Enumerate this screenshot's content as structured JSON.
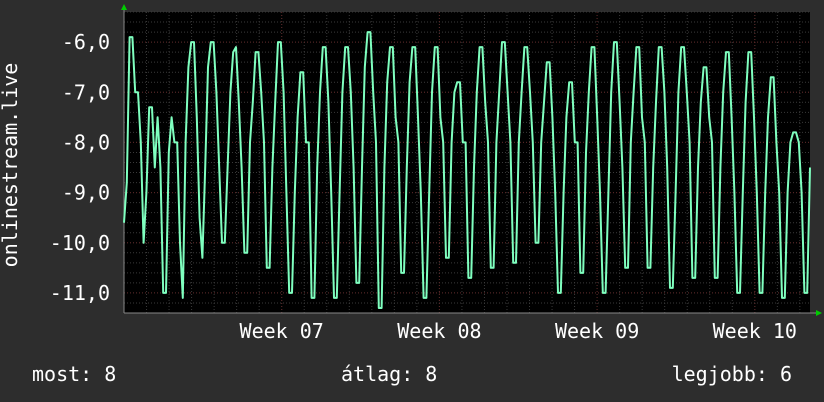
{
  "legend": {
    "now_label": "most:",
    "now_value": "8",
    "avg_label": "átlag:",
    "avg_value": "8",
    "max_label": "legjobb:",
    "max_value": "6"
  },
  "colors": {
    "background": "#2d2d2d",
    "plot_background": "#000000",
    "line": "#7fffbf",
    "grid_major": "#5a2525",
    "grid_minor": "#3a3a3a",
    "text": "#ffffff",
    "arrow": "#00cc00"
  },
  "chart_data": {
    "type": "line",
    "ylabel": "onlinestream.live",
    "x_range": [
      0,
      4.35
    ],
    "ylim": [
      -11.4,
      -5.4
    ],
    "y_ticks": [
      -6,
      -7,
      -8,
      -9,
      -10,
      -11
    ],
    "y_tick_labels": [
      "-6,0",
      "-7,0",
      "-8,0",
      "-9,0",
      "-10,0",
      "-11,0"
    ],
    "x_ticks": [
      1,
      2,
      3,
      4
    ],
    "x_tick_labels": [
      "Week 07",
      "Week 08",
      "Week 09",
      "Week 10"
    ],
    "grid": true,
    "series": [
      {
        "cycle_length_weeks": 0.143,
        "cycle_minima": [
          -10,
          -11,
          -11.1,
          -10.3,
          -10,
          -10.2,
          -10.5,
          -11,
          -11.1,
          -11.1,
          -10.8,
          -11.3,
          -10.6,
          -11.1,
          -10.3,
          -10.7,
          -10.5,
          -10.4,
          -10,
          -11,
          -10.6,
          -11,
          -10.5,
          -10.5,
          -10.9,
          -10.7,
          -10.7,
          -11,
          -11,
          -11.1,
          -11
        ],
        "cycle_maxima": [
          -5.9,
          -7.3,
          -6,
          -6,
          -6.1,
          -6.1,
          -6.2,
          -6,
          -6.6,
          -6.1,
          -6.1,
          -5.8,
          -6.1,
          -6.1,
          -6.1,
          -6.8,
          -6.1,
          -6,
          -6.1,
          -6.4,
          -6.8,
          -6.1,
          -6,
          -6.1,
          -6.1,
          -6.1,
          -6.5,
          -6.2,
          -6.2,
          -6.7,
          -7.8
        ],
        "values": [
          -9.6,
          -8.8,
          -5.9,
          -5.9,
          -7.0,
          -7.0,
          -8.0,
          -10.0,
          -9.0,
          -7.3,
          -7.3,
          -8.5,
          -7.5,
          -8.5,
          -11.0,
          -11.0,
          -8.2,
          -7.5,
          -8.0,
          -8.0,
          -10.0,
          -11.1,
          -8.0,
          -6.5,
          -6.0,
          -6.0,
          -7.5,
          -9.5,
          -10.3,
          -8.5,
          -6.5,
          -6.0,
          -6.0,
          -7.0,
          -8.5,
          -10.0,
          -10.0,
          -8.5,
          -7.0,
          -6.2,
          -6.1,
          -7.2,
          -8.5,
          -10.2,
          -10.2,
          -8.0,
          -7.2,
          -6.2,
          -6.2,
          -7.0,
          -8.0,
          -10.5,
          -10.5,
          -8.5,
          -7.2,
          -6.0,
          -6.0,
          -7.0,
          -9.0,
          -11.0,
          -11.0,
          -9.0,
          -7.5,
          -6.6,
          -6.6,
          -8.0,
          -8.0,
          -11.1,
          -11.1,
          -8.5,
          -7.0,
          -6.1,
          -6.1,
          -7.2,
          -9.0,
          -11.1,
          -11.1,
          -9.0,
          -7.0,
          -6.1,
          -6.1,
          -7.0,
          -8.5,
          -10.8,
          -10.8,
          -8.5,
          -6.5,
          -5.8,
          -5.8,
          -7.0,
          -8.0,
          -11.3,
          -11.3,
          -8.5,
          -6.8,
          -6.1,
          -6.1,
          -7.5,
          -8.0,
          -10.6,
          -10.6,
          -8.5,
          -6.8,
          -6.1,
          -6.1,
          -7.5,
          -9.0,
          -11.1,
          -11.1,
          -9.0,
          -7.0,
          -6.1,
          -6.1,
          -7.5,
          -8.0,
          -10.3,
          -10.3,
          -8.0,
          -7.0,
          -6.8,
          -6.8,
          -8.0,
          -8.0,
          -10.7,
          -10.7,
          -8.5,
          -7.0,
          -6.1,
          -6.1,
          -7.2,
          -8.0,
          -10.5,
          -10.5,
          -8.0,
          -7.0,
          -6.0,
          -6.0,
          -7.0,
          -8.0,
          -10.4,
          -10.4,
          -8.0,
          -7.0,
          -6.1,
          -6.1,
          -7.0,
          -8.0,
          -10.0,
          -10.0,
          -8.0,
          -7.2,
          -6.4,
          -6.4,
          -7.5,
          -9.0,
          -11.0,
          -11.0,
          -9.0,
          -7.5,
          -6.8,
          -6.8,
          -8.0,
          -8.0,
          -10.6,
          -10.6,
          -8.2,
          -7.0,
          -6.1,
          -6.1,
          -7.5,
          -9.0,
          -11.0,
          -11.0,
          -9.0,
          -7.0,
          -6.0,
          -6.0,
          -7.2,
          -8.5,
          -10.5,
          -10.5,
          -8.0,
          -7.0,
          -6.1,
          -6.1,
          -7.5,
          -8.0,
          -10.5,
          -10.5,
          -8.5,
          -7.2,
          -6.1,
          -6.1,
          -7.0,
          -8.5,
          -10.9,
          -10.9,
          -9.0,
          -7.0,
          -6.1,
          -6.1,
          -7.0,
          -8.0,
          -10.7,
          -10.7,
          -8.5,
          -7.2,
          -6.5,
          -6.5,
          -7.5,
          -8.0,
          -10.7,
          -10.7,
          -8.5,
          -7.0,
          -6.2,
          -6.2,
          -7.5,
          -9.0,
          -11.0,
          -11.0,
          -9.0,
          -7.2,
          -6.2,
          -6.2,
          -7.5,
          -9.0,
          -11.0,
          -11.0,
          -9.0,
          -7.5,
          -6.7,
          -6.7,
          -8.0,
          -9.0,
          -11.1,
          -11.1,
          -9.0,
          -8.0,
          -7.8,
          -7.8,
          -8.0,
          -9.0,
          -11.0,
          -11.0,
          -8.5
        ]
      }
    ]
  }
}
